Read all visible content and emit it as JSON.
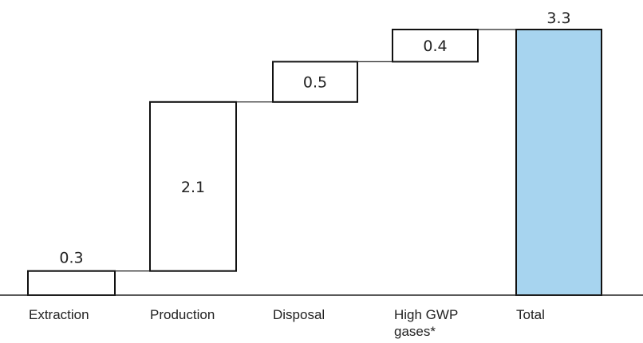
{
  "chart_data": {
    "type": "bar",
    "subtype": "waterfall",
    "title": "",
    "xlabel": "",
    "ylabel": "",
    "categories": [
      "Extraction",
      "Production",
      "Disposal",
      "High GWP gases*",
      "Total"
    ],
    "tick_lines": [
      [
        "Extraction"
      ],
      [
        "Production"
      ],
      [
        "Disposal"
      ],
      [
        "High GWP",
        "gases*"
      ],
      [
        "Total"
      ]
    ],
    "values": [
      0.3,
      2.1,
      0.5,
      0.4,
      3.3
    ],
    "value_labels": [
      "0.3",
      "2.1",
      "0.5",
      "0.4",
      "3.3"
    ],
    "is_total": [
      false,
      false,
      false,
      false,
      true
    ],
    "ylim": [
      0,
      3.3
    ],
    "grid": false,
    "legend": "none",
    "colors": {
      "step_fill": "#ffffff",
      "total_fill": "#a7d4ef",
      "outline": "#111111"
    }
  }
}
